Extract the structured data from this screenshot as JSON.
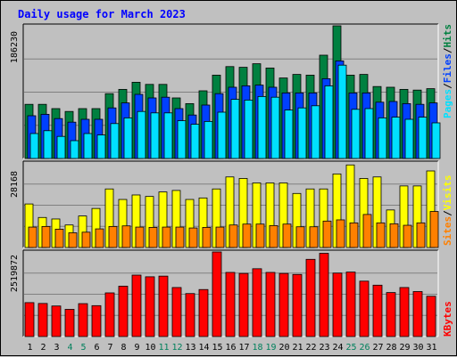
{
  "chart_data": {
    "type": "bar",
    "title": "Daily usage for March 2023",
    "days": [
      "1",
      "2",
      "3",
      "4",
      "5",
      "6",
      "7",
      "8",
      "9",
      "10",
      "11",
      "12",
      "13",
      "14",
      "15",
      "16",
      "17",
      "18",
      "19",
      "20",
      "21",
      "22",
      "23",
      "24",
      "25",
      "26",
      "27",
      "28",
      "29",
      "30",
      "31"
    ],
    "weekend_days": [
      "4",
      "5",
      "11",
      "12",
      "18",
      "19",
      "25",
      "26"
    ],
    "panels": {
      "requests": {
        "max_label": "186230",
        "ymax": 186230,
        "series": [
          {
            "name": "Hits",
            "color": "#008040",
            "values": [
              76000,
              76000,
              70000,
              66000,
              70000,
              70000,
              91000,
              97000,
              107000,
              104000,
              104000,
              85000,
              77000,
              95000,
              117000,
              129000,
              128000,
              133000,
              127000,
              113000,
              118000,
              117000,
              145000,
              186230,
              117000,
              118000,
              101000,
              100000,
              97000,
              96000,
              98000
            ]
          },
          {
            "name": "Files",
            "color": "#0040ff",
            "values": [
              60000,
              62000,
              56000,
              51000,
              55000,
              55000,
              71000,
              78000,
              90000,
              85000,
              86000,
              70000,
              61000,
              75000,
              91000,
              100000,
              102000,
              103000,
              100000,
              92000,
              92000,
              92000,
              112000,
              137000,
              92000,
              92000,
              79000,
              80000,
              77000,
              76000,
              78000
            ]
          },
          {
            "name": "Pages",
            "color": "#00e0ff",
            "values": [
              35000,
              39000,
              31000,
              25000,
              35000,
              33000,
              49000,
              57000,
              66000,
              64000,
              64000,
              53000,
              48000,
              52000,
              65000,
              83000,
              82000,
              87000,
              86000,
              68000,
              71000,
              74000,
              102000,
              131000,
              69000,
              70000,
              57000,
              58000,
              55000,
              58000,
              50000
            ]
          }
        ]
      },
      "sites_visits": {
        "max_label": "28168",
        "ymax": 28168,
        "series": [
          {
            "name": "Visits",
            "color": "#ffff00",
            "values": [
              14500,
              10000,
              9500,
              7500,
              10500,
              13000,
              19500,
              16000,
              17500,
              17000,
              18500,
              19000,
              16000,
              16500,
              19500,
              23500,
              23000,
              21500,
              21500,
              21500,
              18000,
              19500,
              19500,
              24500,
              27500,
              23000,
              23500,
              12500,
              20500,
              20500,
              25500
            ]
          },
          {
            "name": "Sites",
            "color": "#ff8000",
            "values": [
              6800,
              7000,
              6100,
              4900,
              5100,
              6200,
              7000,
              7200,
              6800,
              6700,
              6800,
              6800,
              6500,
              6700,
              6800,
              7500,
              7800,
              7800,
              7300,
              7800,
              6900,
              6900,
              8800,
              9200,
              8200,
              11000,
              8200,
              7900,
              7400,
              8200,
              12000
            ]
          }
        ]
      },
      "kbytes": {
        "max_label": "2519872",
        "ymax": 2519872,
        "series": [
          {
            "name": "KBytes",
            "color": "#ff0000",
            "values": [
              1010000,
              985000,
              910000,
              810000,
              980000,
              920000,
              1300000,
              1500000,
              1830000,
              1780000,
              1800000,
              1460000,
              1280000,
              1400000,
              2519872,
              1910000,
              1880000,
              2020000,
              1910000,
              1880000,
              1850000,
              2300000,
              2480000,
              1890000,
              1920000,
              1650000,
              1530000,
              1310000,
              1460000,
              1340000,
              1200000
            ]
          }
        ]
      }
    },
    "legend": {
      "requests": [
        "Pages",
        "/",
        "Files",
        "/",
        "Hits"
      ],
      "sites_visits": [
        "Sites",
        "/",
        "Visits"
      ],
      "kbytes": [
        "KBytes"
      ]
    },
    "colors": {
      "title": "#0000ff",
      "hits": "#008040",
      "files": "#0040ff",
      "pages": "#00e0ff",
      "visits": "#ffff00",
      "sites": "#ff8000",
      "kbytes": "#ff0000",
      "weekday_label": "#000000",
      "weekend_label": "#00805c",
      "panel_bg": "#c0c0c0",
      "grid": "#808080"
    }
  }
}
